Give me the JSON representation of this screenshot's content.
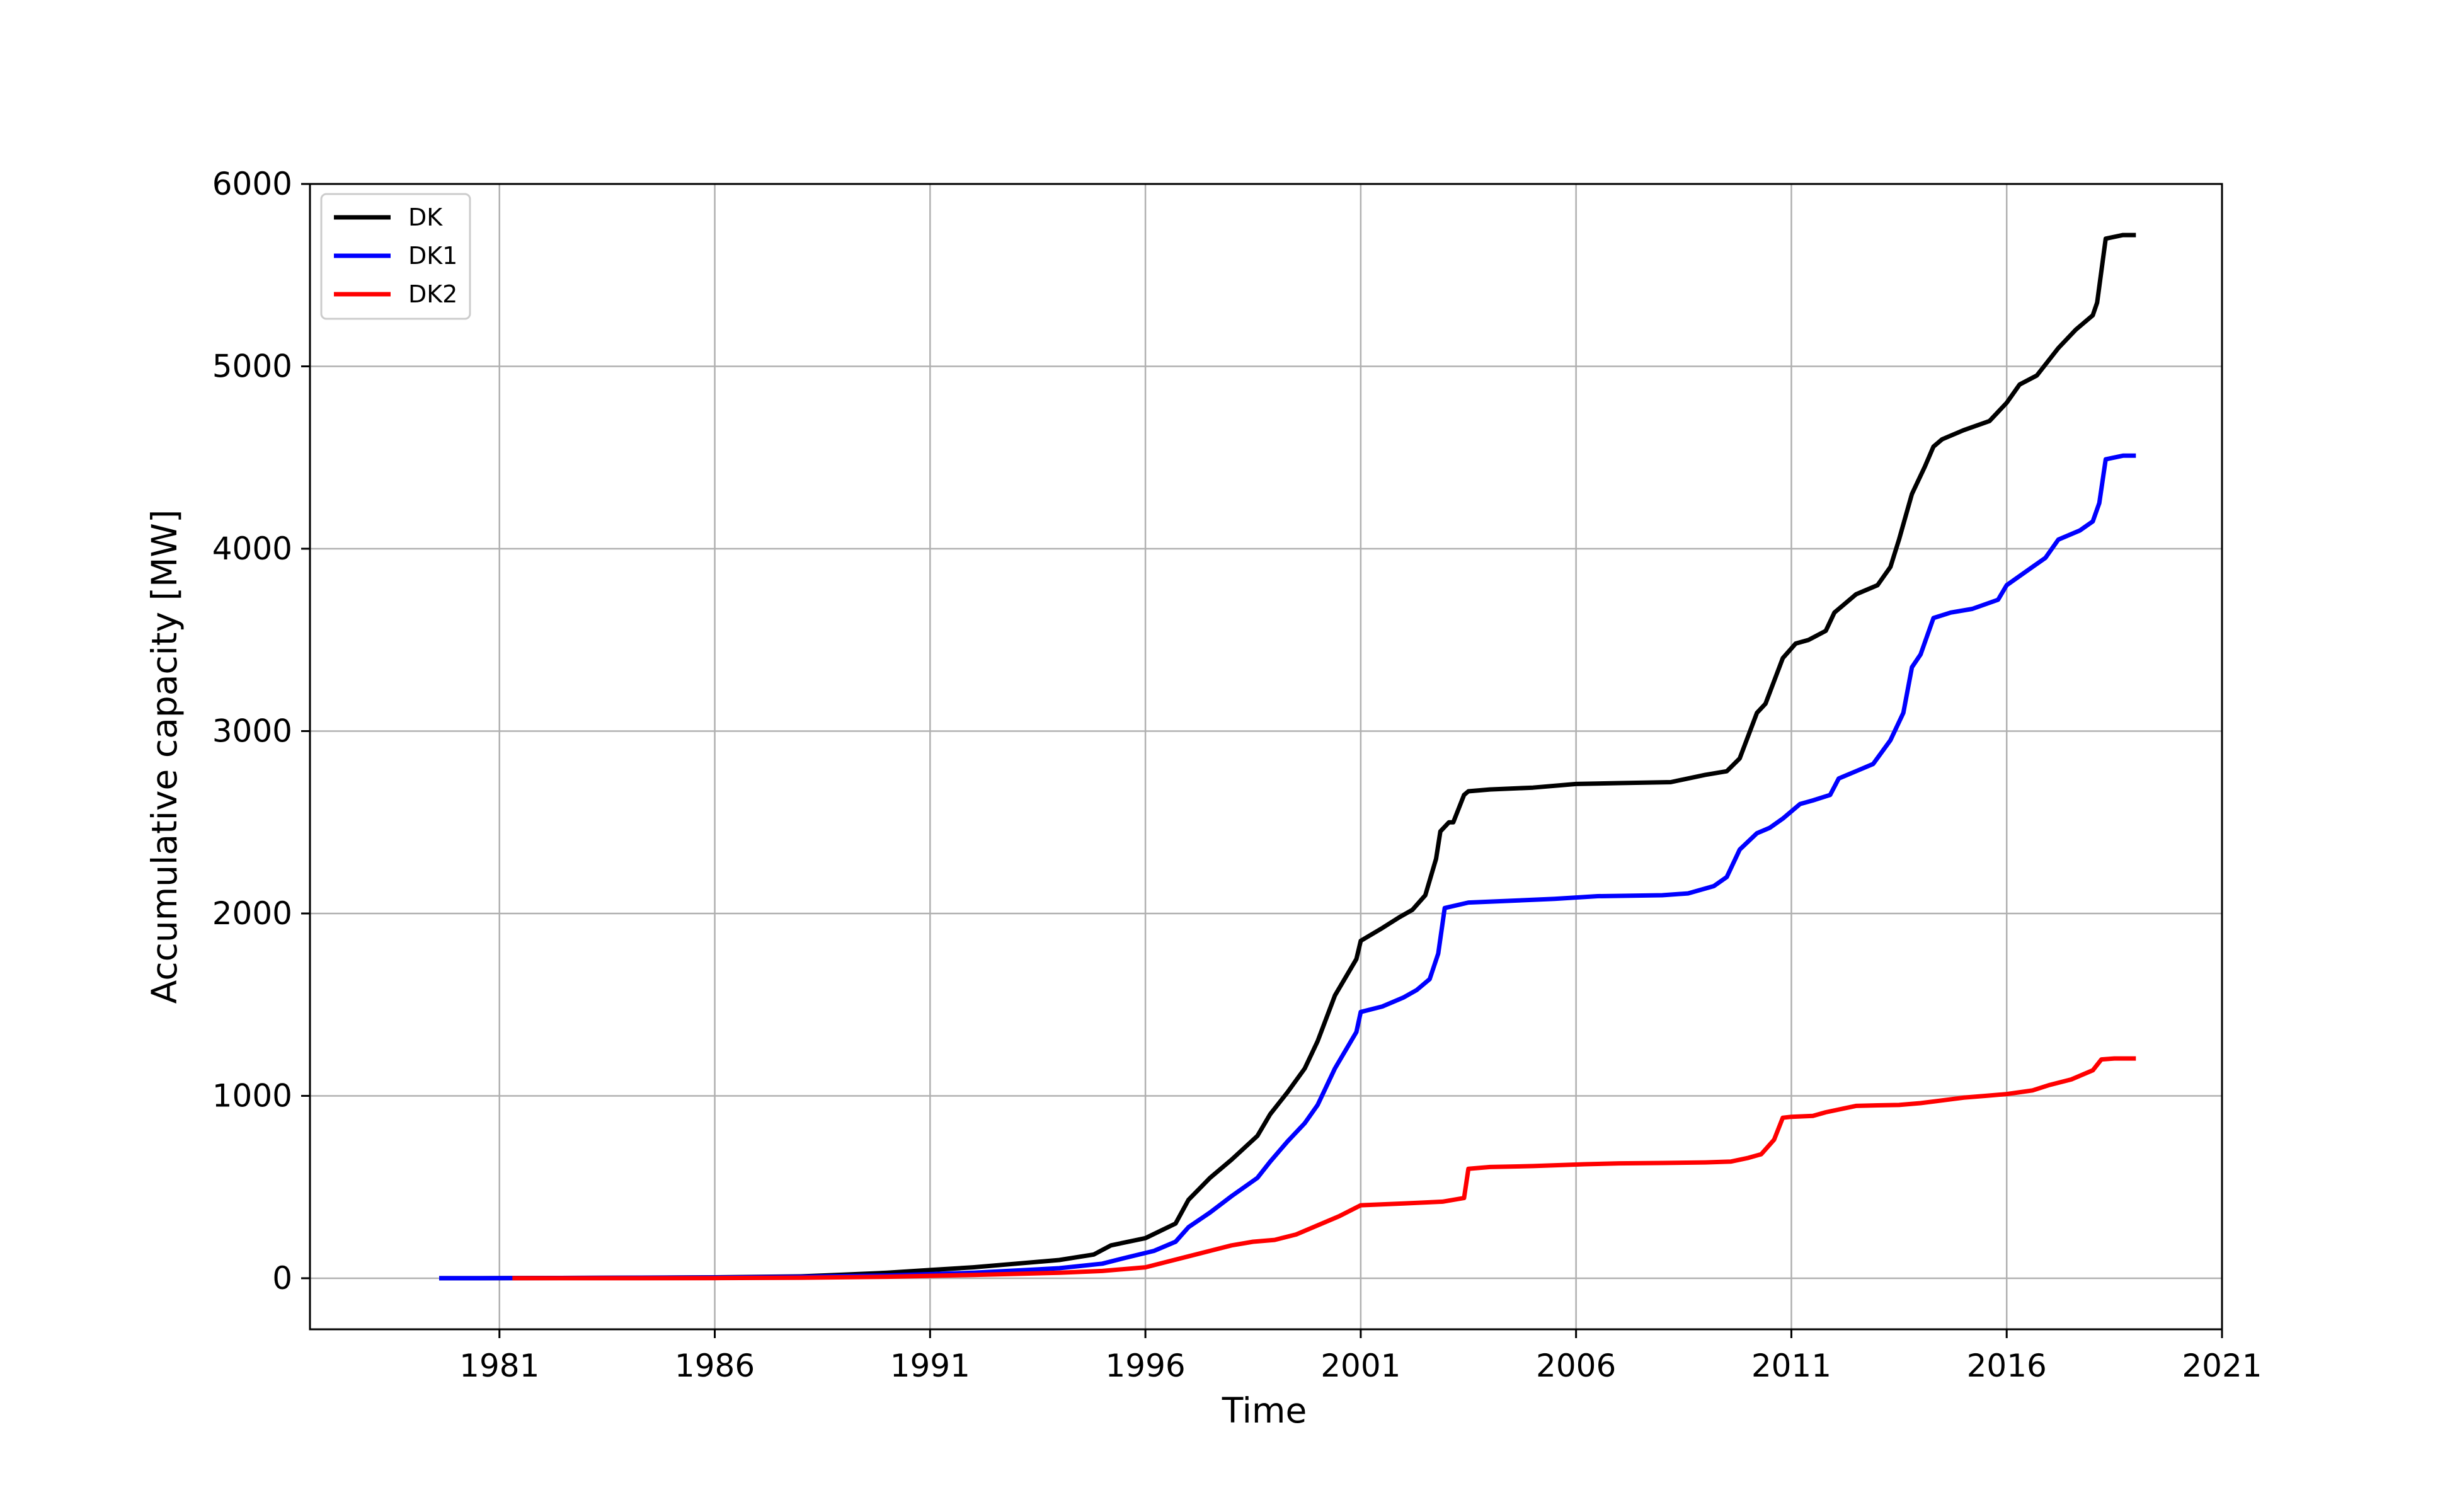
{
  "chart_data": {
    "type": "line",
    "title": "",
    "xlabel": "Time",
    "ylabel": "Accumulative capacity [MW]",
    "xlim": [
      1976.6,
      2021.0
    ],
    "ylim": [
      -280,
      6000
    ],
    "xticks": [
      1981,
      1986,
      1991,
      1996,
      2001,
      2006,
      2011,
      2016,
      2021
    ],
    "xtick_labels": [
      "1981",
      "1986",
      "1991",
      "1996",
      "2001",
      "2006",
      "2011",
      "2016",
      "2021"
    ],
    "yticks": [
      0,
      1000,
      2000,
      3000,
      4000,
      5000,
      6000
    ],
    "ytick_labels": [
      "0",
      "1000",
      "2000",
      "3000",
      "4000",
      "5000",
      "6000"
    ],
    "grid": true,
    "legend_position": "top-left",
    "series": [
      {
        "name": "DK",
        "color": "#000000",
        "x": [
          1979.6,
          1980.5,
          1983.0,
          1986.0,
          1988.0,
          1989.0,
          1990.0,
          1991.0,
          1992.0,
          1993.0,
          1994.0,
          1994.8,
          1995.2,
          1996.0,
          1996.7,
          1997.0,
          1997.5,
          1998.0,
          1998.6,
          1998.9,
          1999.3,
          1999.7,
          2000.0,
          2000.4,
          2000.9,
          2001.0,
          2001.5,
          2001.9,
          2002.2,
          2002.5,
          2002.75,
          2002.85,
          2003.05,
          2003.15,
          2003.4,
          2003.5,
          2004.0,
          2005.0,
          2006.0,
          2007.0,
          2008.2,
          2009.0,
          2009.5,
          2009.8,
          2010.2,
          2010.4,
          2010.8,
          2011.1,
          2011.4,
          2011.8,
          2012.0,
          2012.5,
          2013.0,
          2013.3,
          2013.5,
          2013.8,
          2014.1,
          2014.3,
          2014.5,
          2015.0,
          2015.6,
          2016.0,
          2016.3,
          2016.7,
          2017.2,
          2017.6,
          2018.0,
          2018.1,
          2018.3,
          2018.7,
          2019.0
        ],
        "y": [
          0,
          0,
          2,
          5,
          10,
          20,
          30,
          45,
          60,
          80,
          100,
          130,
          180,
          220,
          300,
          430,
          550,
          650,
          780,
          900,
          1020,
          1150,
          1300,
          1550,
          1750,
          1850,
          1920,
          1980,
          2020,
          2100,
          2300,
          2450,
          2500,
          2500,
          2650,
          2670,
          2680,
          2690,
          2710,
          2715,
          2720,
          2760,
          2780,
          2850,
          3100,
          3150,
          3400,
          3480,
          3500,
          3550,
          3650,
          3750,
          3800,
          3900,
          4050,
          4300,
          4450,
          4560,
          4600,
          4650,
          4700,
          4800,
          4900,
          4950,
          5100,
          5200,
          5280,
          5350,
          5700,
          5720,
          5720
        ]
      },
      {
        "name": "DK1",
        "color": "#0000ff",
        "x": [
          1979.6,
          1980.5,
          1983.0,
          1986.0,
          1988.0,
          1990.0,
          1992.0,
          1994.0,
          1995.0,
          1995.5,
          1996.2,
          1996.7,
          1997.0,
          1997.5,
          1998.0,
          1998.6,
          1998.9,
          1999.3,
          1999.7,
          2000.0,
          2000.4,
          2000.9,
          2001.0,
          2001.5,
          2002.0,
          2002.3,
          2002.6,
          2002.8,
          2002.95,
          2003.5,
          2004.5,
          2005.5,
          2006.5,
          2008.0,
          2008.6,
          2009.2,
          2009.5,
          2009.8,
          2010.2,
          2010.5,
          2010.8,
          2011.2,
          2011.5,
          2011.9,
          2012.1,
          2012.5,
          2012.9,
          2013.3,
          2013.6,
          2013.8,
          2014.0,
          2014.3,
          2014.7,
          2015.2,
          2015.8,
          2016.0,
          2016.6,
          2016.9,
          2017.2,
          2017.7,
          2018.0,
          2018.15,
          2018.3,
          2018.7,
          2019.0
        ],
        "y": [
          0,
          0,
          2,
          4,
          8,
          15,
          30,
          55,
          80,
          110,
          150,
          200,
          280,
          360,
          450,
          550,
          640,
          750,
          850,
          950,
          1150,
          1350,
          1460,
          1490,
          1540,
          1580,
          1640,
          1780,
          2030,
          2060,
          2070,
          2080,
          2095,
          2100,
          2110,
          2150,
          2200,
          2350,
          2440,
          2470,
          2520,
          2600,
          2620,
          2650,
          2740,
          2780,
          2820,
          2950,
          3100,
          3350,
          3420,
          3620,
          3650,
          3670,
          3720,
          3800,
          3900,
          3950,
          4050,
          4100,
          4150,
          4250,
          4490,
          4510,
          4510
        ]
      },
      {
        "name": "DK2",
        "color": "#ff0000",
        "x": [
          1981.3,
          1983.0,
          1986.0,
          1988.0,
          1990.0,
          1992.0,
          1994.0,
          1995.0,
          1996.0,
          1996.5,
          1997.0,
          1997.5,
          1998.0,
          1998.5,
          1999.0,
          1999.5,
          2000.0,
          2000.5,
          2001.0,
          2002.0,
          2002.9,
          2003.4,
          2003.5,
          2004.0,
          2005.0,
          2006.2,
          2007.0,
          2008.0,
          2009.0,
          2009.6,
          2010.0,
          2010.3,
          2010.6,
          2010.8,
          2011.0,
          2011.5,
          2011.8,
          2012.2,
          2012.5,
          2013.0,
          2013.5,
          2014.0,
          2014.5,
          2015.0,
          2015.5,
          2016.0,
          2016.6,
          2017.0,
          2017.5,
          2018.0,
          2018.2,
          2018.5,
          2019.0
        ],
        "y": [
          0,
          0,
          1,
          3,
          8,
          18,
          30,
          40,
          60,
          90,
          120,
          150,
          180,
          200,
          210,
          240,
          290,
          340,
          400,
          410,
          420,
          440,
          600,
          610,
          615,
          625,
          630,
          632,
          635,
          640,
          660,
          680,
          760,
          880,
          885,
          890,
          910,
          930,
          945,
          948,
          950,
          960,
          975,
          990,
          1000,
          1010,
          1030,
          1060,
          1090,
          1140,
          1200,
          1205,
          1205
        ]
      }
    ]
  }
}
